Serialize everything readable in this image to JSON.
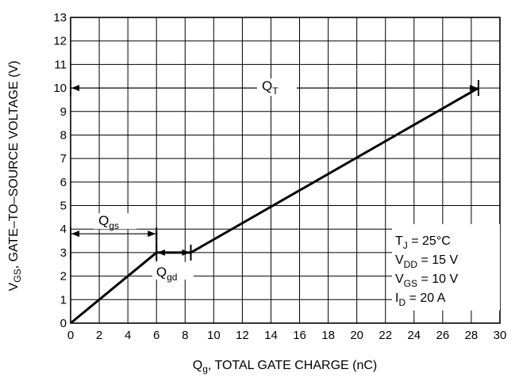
{
  "chart_data": {
    "type": "line",
    "title": "",
    "x_axis": {
      "label_main": "Q",
      "label_sub": "g",
      "label_rest": ", TOTAL GATE CHARGE (nC)",
      "range": [
        0,
        30
      ],
      "ticks": [
        "0",
        "2",
        "4",
        "6",
        "8",
        "10",
        "12",
        "14",
        "16",
        "18",
        "20",
        "22",
        "24",
        "26",
        "28",
        "30"
      ]
    },
    "y_axis": {
      "label_main": "V",
      "label_sub": "GS",
      "label_rest": ", GATE–TO–SOURCE VOLTAGE (V)",
      "range": [
        0,
        13
      ],
      "ticks": [
        "0",
        "1",
        "2",
        "3",
        "4",
        "5",
        "6",
        "7",
        "8",
        "9",
        "10",
        "11",
        "12",
        "13"
      ]
    },
    "grid": true,
    "series": [
      {
        "x": [
          0,
          6,
          8.4,
          28.5
        ],
        "y": [
          0,
          3,
          3,
          10
        ]
      }
    ],
    "annotations": {
      "qt": {
        "main": "Q",
        "sub": "T",
        "x_from": 0,
        "x_to": 28.5,
        "y": 10
      },
      "qgs": {
        "main": "Q",
        "sub": "gs",
        "x_from": 0,
        "x_to": 6,
        "y": 3.8
      },
      "qgd": {
        "main": "Q",
        "sub": "gd",
        "x_from": 6,
        "x_to": 8.4,
        "y": 3
      }
    },
    "conditions": [
      {
        "main": "T",
        "sub": "J",
        "rest": " = 25°C"
      },
      {
        "main": "V",
        "sub": "DD",
        "rest": " = 15 V"
      },
      {
        "main": "V",
        "sub": "GS",
        "rest": " = 10 V"
      },
      {
        "main": "I",
        "sub": "D",
        "rest": " = 20 A"
      }
    ]
  }
}
